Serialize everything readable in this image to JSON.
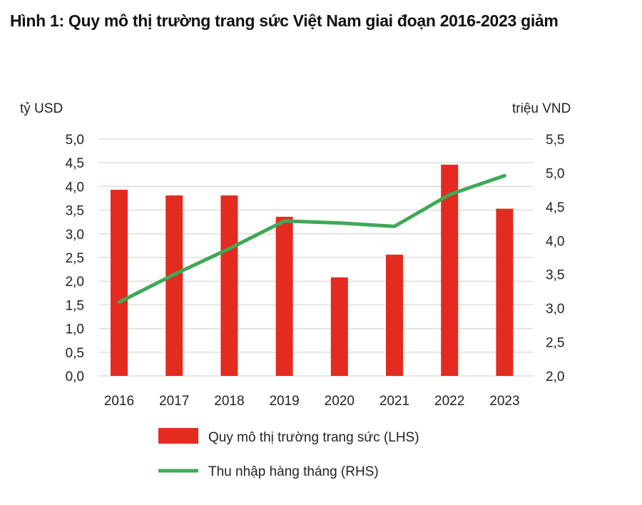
{
  "chart_data": {
    "type": "bar+line",
    "title": "Hình 1: Quy mô thị trường trang sức Việt Nam giai đoạn 2016-2023 giảm",
    "categories": [
      "2016",
      "2017",
      "2018",
      "2019",
      "2020",
      "2021",
      "2022",
      "2023"
    ],
    "left_axis": {
      "label": "tỷ USD",
      "range": [
        0,
        5
      ],
      "ticks": [
        "0,0",
        "0,5",
        "1,0",
        "1,5",
        "2,0",
        "2,5",
        "3,0",
        "3,5",
        "4,0",
        "4,5",
        "5,0"
      ]
    },
    "right_axis": {
      "label": "triệu VND",
      "range": [
        2,
        5.5
      ],
      "ticks": [
        "2,0",
        "2,5",
        "3,0",
        "3,5",
        "4,0",
        "4,5",
        "5,0",
        "5,5"
      ]
    },
    "series": [
      {
        "name": "Quy mô thị trường trang sức (LHS)",
        "type": "bar",
        "axis": "left",
        "color": "#e32b20",
        "values": [
          3.93,
          3.81,
          3.81,
          3.36,
          2.08,
          2.56,
          4.46,
          3.53
        ]
      },
      {
        "name": "Thu nhập hàng tháng (RHS)",
        "type": "line",
        "axis": "right",
        "color": "#3fa857",
        "values": [
          3.09,
          3.5,
          3.88,
          4.29,
          4.26,
          4.21,
          4.68,
          4.96
        ]
      }
    ],
    "grid": true,
    "legend": "bottom"
  }
}
